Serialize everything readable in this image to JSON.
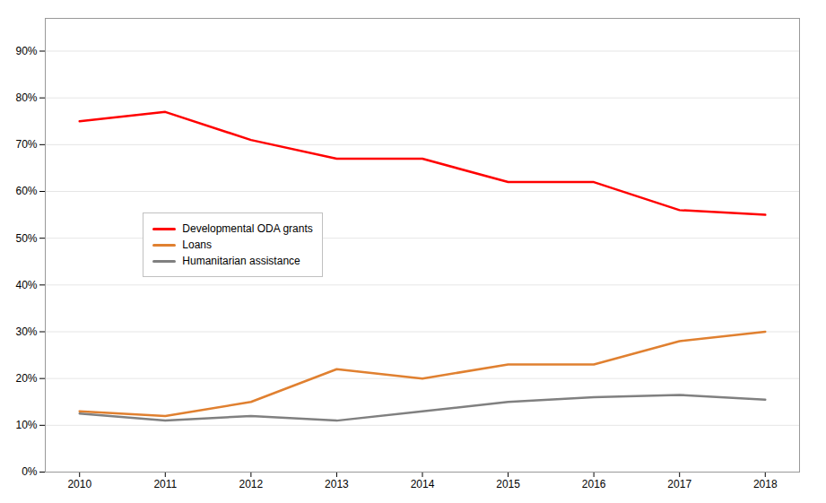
{
  "chart_data": {
    "type": "line",
    "x": [
      2010,
      2011,
      2012,
      2013,
      2014,
      2015,
      2016,
      2017,
      2018
    ],
    "series": [
      {
        "name": "Developmental ODA grants",
        "color": "#ff0000",
        "values": [
          0.75,
          0.77,
          0.71,
          0.67,
          0.67,
          0.62,
          0.62,
          0.56,
          0.55
        ]
      },
      {
        "name": "Loans",
        "color": "#e08030",
        "values": [
          0.13,
          0.12,
          0.15,
          0.22,
          0.2,
          0.23,
          0.23,
          0.28,
          0.3
        ]
      },
      {
        "name": "Humanitarian assistance",
        "color": "#808080",
        "values": [
          0.125,
          0.11,
          0.12,
          0.11,
          0.13,
          0.15,
          0.16,
          0.165,
          0.155
        ]
      }
    ],
    "xlim": [
      2009.6,
      2018.4
    ],
    "xticks": [
      2010,
      2011,
      2012,
      2013,
      2014,
      2015,
      2016,
      2017,
      2018
    ],
    "ylim": [
      0.0,
      0.97
    ],
    "yticks": [
      {
        "value": 0.0,
        "label": "0%"
      },
      {
        "value": 0.1,
        "label": "10%"
      },
      {
        "value": 0.2,
        "label": "20%"
      },
      {
        "value": 0.3,
        "label": "30%"
      },
      {
        "value": 0.4,
        "label": "40%"
      },
      {
        "value": 0.5,
        "label": "50%"
      },
      {
        "value": 0.6,
        "label": "60%"
      },
      {
        "value": 0.7,
        "label": "70%"
      },
      {
        "value": 0.8,
        "label": "80%"
      },
      {
        "value": 0.9,
        "label": "90%"
      }
    ],
    "grid": true,
    "legend": "left"
  }
}
